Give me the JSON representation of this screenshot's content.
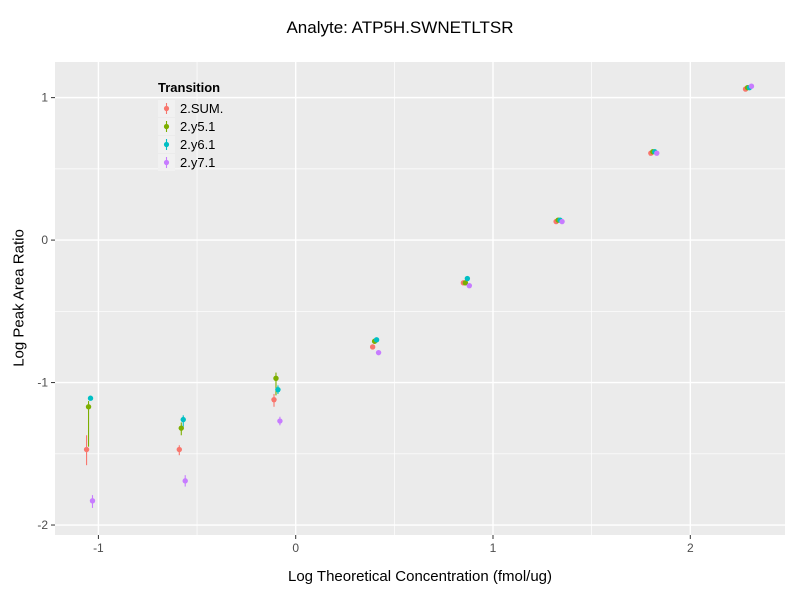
{
  "chart_data": {
    "type": "scatter",
    "title": "Analyte: ATP5H.SWNETLTSR",
    "xlabel": "Log Theoretical Concentration (fmol/ug)",
    "ylabel": "Log Peak Area Ratio",
    "xlim": [
      -1.22,
      2.48
    ],
    "ylim": [
      -2.07,
      1.25
    ],
    "xticks": [
      -1,
      0,
      1,
      2
    ],
    "yticks": [
      -2,
      -1,
      0,
      1
    ],
    "x_minor": [
      -0.5,
      0.5,
      1.5
    ],
    "y_minor": [
      -1.5,
      -0.5,
      0.5
    ],
    "grid": true,
    "panel_bg": "#EBEBEB",
    "grid_color": "#FFFFFF",
    "tick_label_color": "#4D4D4D",
    "tick_mark_color": "#333333",
    "legend_title": "Transition",
    "legend_position": "inside-top-left",
    "series": [
      {
        "name": "2.SUM.",
        "color": "#F8766D",
        "points": [
          {
            "x": -1.06,
            "y": -1.47,
            "ymin": -1.58,
            "ymax": -1.37
          },
          {
            "x": -0.59,
            "y": -1.47,
            "ymin": -1.51,
            "ymax": -1.44
          },
          {
            "x": -0.11,
            "y": -1.12,
            "ymin": -1.17,
            "ymax": -1.08
          },
          {
            "x": 0.39,
            "y": -0.75
          },
          {
            "x": 0.85,
            "y": -0.3
          },
          {
            "x": 1.32,
            "y": 0.13
          },
          {
            "x": 1.8,
            "y": 0.61
          },
          {
            "x": 2.28,
            "y": 1.06
          }
        ]
      },
      {
        "name": "2.y5.1",
        "color": "#7CAE00",
        "points": [
          {
            "x": -1.05,
            "y": -1.17,
            "ymin": -1.45,
            "ymax": -1.13
          },
          {
            "x": -0.58,
            "y": -1.32,
            "ymin": -1.37,
            "ymax": -1.28
          },
          {
            "x": -0.1,
            "y": -0.97,
            "ymin": -1.09,
            "ymax": -0.93
          },
          {
            "x": 0.4,
            "y": -0.71
          },
          {
            "x": 0.86,
            "y": -0.3
          },
          {
            "x": 1.33,
            "y": 0.14
          },
          {
            "x": 1.81,
            "y": 0.62
          },
          {
            "x": 2.29,
            "y": 1.07
          }
        ]
      },
      {
        "name": "2.y6.1",
        "color": "#00BFC4",
        "points": [
          {
            "x": -1.04,
            "y": -1.11
          },
          {
            "x": -0.57,
            "y": -1.26,
            "ymin": -1.31,
            "ymax": -1.23
          },
          {
            "x": -0.09,
            "y": -1.05,
            "ymin": -1.08,
            "ymax": -1.02
          },
          {
            "x": 0.41,
            "y": -0.7
          },
          {
            "x": 0.87,
            "y": -0.27
          },
          {
            "x": 1.34,
            "y": 0.14
          },
          {
            "x": 1.82,
            "y": 0.62
          },
          {
            "x": 2.3,
            "y": 1.07
          }
        ]
      },
      {
        "name": "2.y7.1",
        "color": "#C77CFF",
        "points": [
          {
            "x": -1.03,
            "y": -1.83,
            "ymin": -1.88,
            "ymax": -1.79
          },
          {
            "x": -0.56,
            "y": -1.69,
            "ymin": -1.73,
            "ymax": -1.65
          },
          {
            "x": -0.08,
            "y": -1.27,
            "ymin": -1.3,
            "ymax": -1.24
          },
          {
            "x": 0.42,
            "y": -0.79
          },
          {
            "x": 0.88,
            "y": -0.32
          },
          {
            "x": 1.35,
            "y": 0.13
          },
          {
            "x": 1.83,
            "y": 0.61
          },
          {
            "x": 2.31,
            "y": 1.08
          }
        ]
      }
    ]
  }
}
